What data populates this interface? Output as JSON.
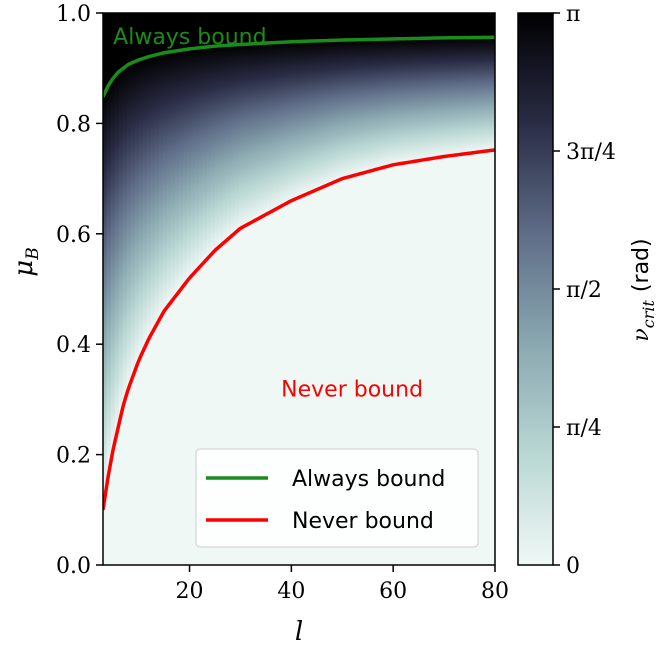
{
  "chart_data": {
    "type": "heatmap",
    "xlabel": "l",
    "ylabel": "μ",
    "ylabel_subscript": "B",
    "xlim": [
      3,
      80
    ],
    "ylim": [
      0,
      1
    ],
    "x_ticks": [
      20,
      40,
      60,
      80
    ],
    "y_ticks": [
      "0.0",
      "0.2",
      "0.4",
      "0.6",
      "0.8",
      "1.0"
    ],
    "colorbar": {
      "label": "ν",
      "label_subscript": "crit",
      "label_unit": "(rad)",
      "range": [
        0,
        3.14159
      ],
      "ticks": [
        {
          "value": 0,
          "label": "0"
        },
        {
          "value": 0.7854,
          "label": "π/4"
        },
        {
          "value": 1.5708,
          "label": "π/2"
        },
        {
          "value": 2.3562,
          "label": "3π/4"
        },
        {
          "value": 3.14159,
          "label": "π"
        }
      ],
      "colormap": [
        "#f0f8f6",
        "#b9d7d3",
        "#8aa8b0",
        "#5f6d88",
        "#2a2c45",
        "#000000"
      ]
    },
    "series": [
      {
        "name": "Always bound",
        "color": "#1a8c1a",
        "x": [
          3,
          4,
          5,
          6,
          8,
          10,
          12,
          15,
          20,
          25,
          30,
          40,
          50,
          60,
          70,
          80
        ],
        "y": [
          0.848,
          0.868,
          0.882,
          0.893,
          0.907,
          0.915,
          0.921,
          0.928,
          0.935,
          0.94,
          0.943,
          0.948,
          0.951,
          0.953,
          0.955,
          0.956
        ]
      },
      {
        "name": "Never bound",
        "color": "#ff0000",
        "x": [
          3,
          4,
          5,
          6,
          7,
          8,
          10,
          12,
          15,
          20,
          25,
          30,
          40,
          50,
          60,
          70,
          80
        ],
        "y": [
          0.1,
          0.16,
          0.21,
          0.25,
          0.29,
          0.32,
          0.37,
          0.41,
          0.46,
          0.52,
          0.57,
          0.61,
          0.66,
          0.7,
          0.725,
          0.74,
          0.752
        ]
      }
    ],
    "annotations": [
      {
        "text": "Always bound",
        "x": 5,
        "y": 0.958,
        "color": "#1a8c1a"
      },
      {
        "text": "Never bound",
        "x": 38,
        "y": 0.32,
        "color": "#ff0000"
      }
    ],
    "legend": {
      "placement": "bottom-right",
      "entries": [
        {
          "label": "Always bound",
          "color": "#1a8c1a"
        },
        {
          "label": "Never bound",
          "color": "#ff0000"
        }
      ]
    }
  }
}
